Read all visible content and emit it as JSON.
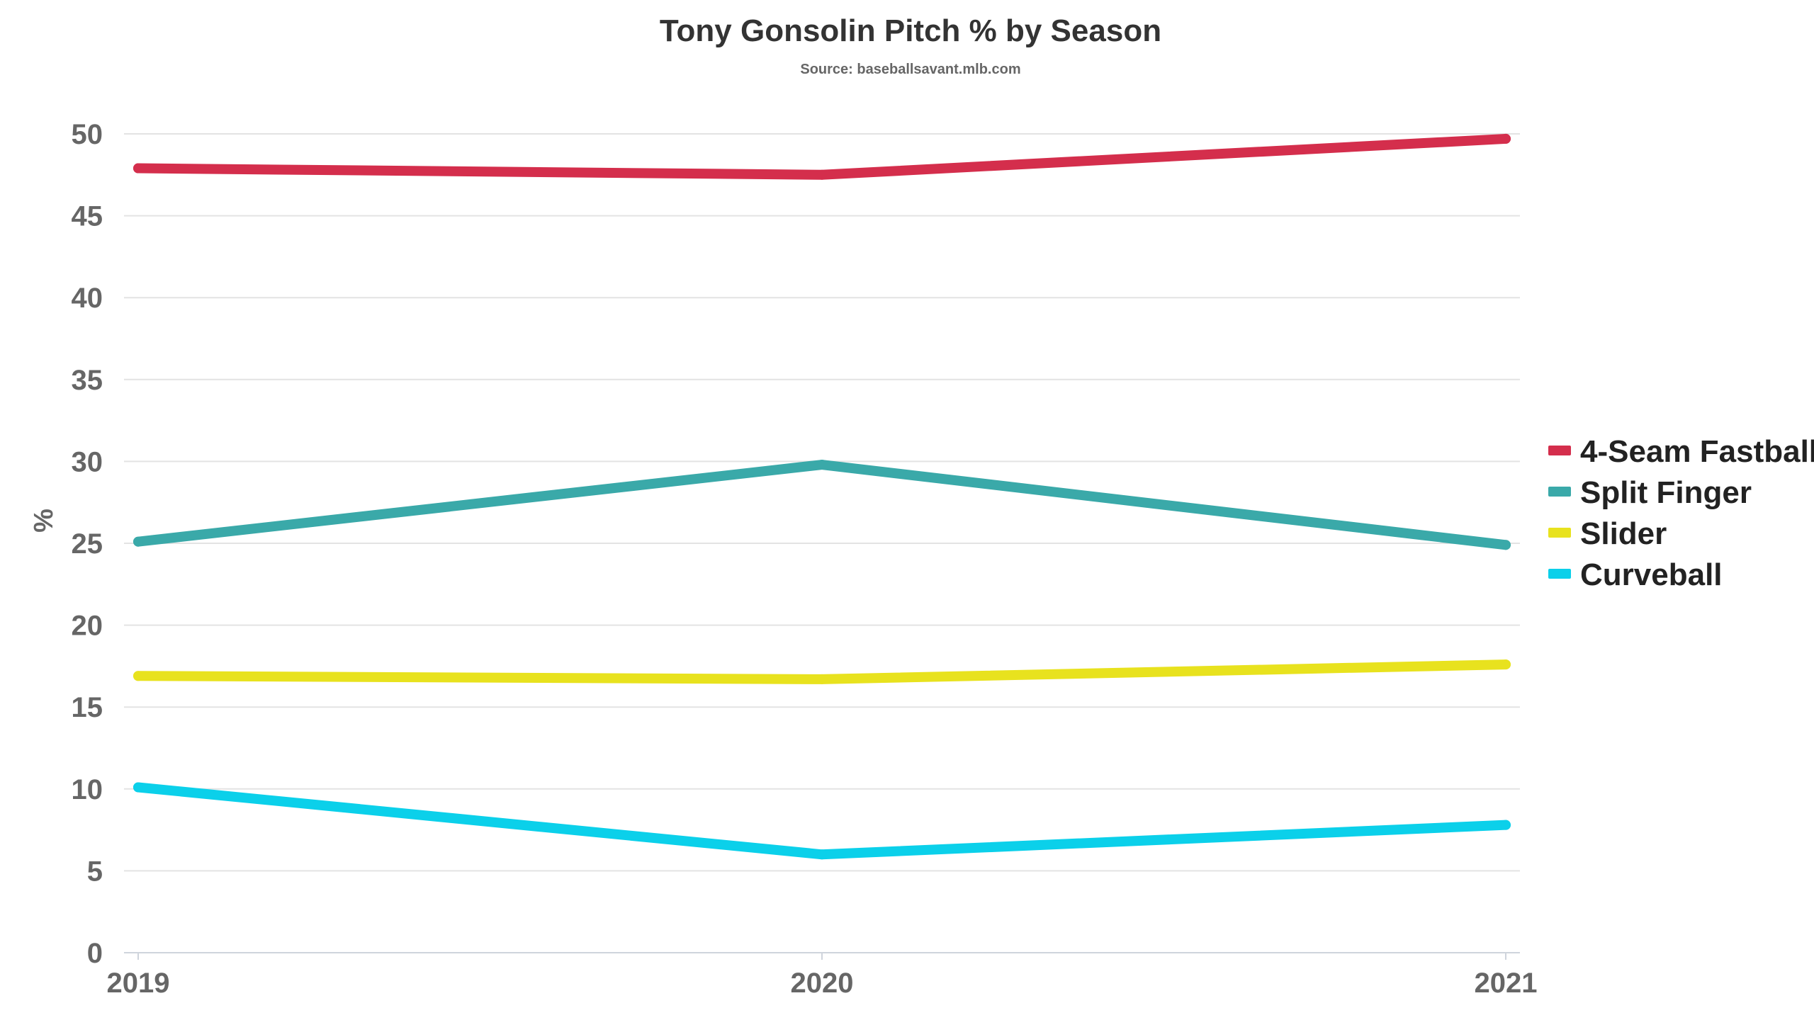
{
  "chart_data": {
    "type": "line",
    "title": "Tony Gonsolin Pitch % by Season",
    "subtitle": "Source: baseballsavant.mlb.com",
    "xlabel": "",
    "ylabel": "%",
    "x": [
      "2019",
      "2020",
      "2021"
    ],
    "ylim": [
      0,
      50
    ],
    "yticks": [
      0,
      5,
      10,
      15,
      20,
      25,
      30,
      35,
      40,
      45,
      50
    ],
    "grid": true,
    "legend_position": "right",
    "series": [
      {
        "name": "4-Seam Fastball",
        "color": "#d42e4c",
        "values": [
          47.9,
          47.5,
          49.7
        ]
      },
      {
        "name": "Split Finger",
        "color": "#3aa9a9",
        "values": [
          25.1,
          29.8,
          24.9
        ]
      },
      {
        "name": "Slider",
        "color": "#e8e21e",
        "values": [
          16.9,
          16.7,
          17.6
        ]
      },
      {
        "name": "Curveball",
        "color": "#0bd0ea",
        "values": [
          10.1,
          6.0,
          7.8
        ]
      }
    ]
  }
}
